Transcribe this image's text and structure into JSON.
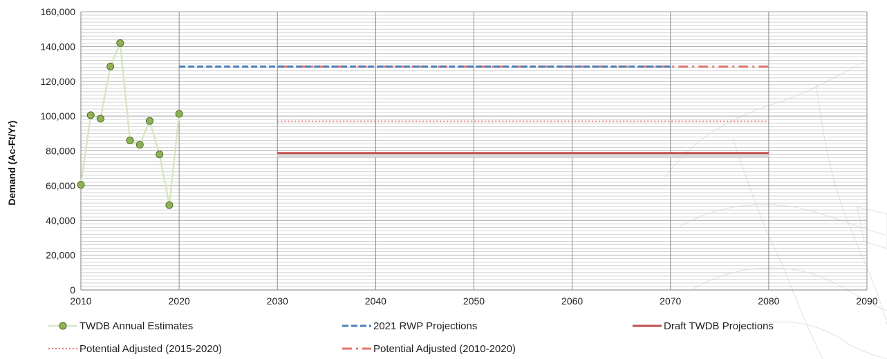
{
  "chart_data": {
    "type": "line",
    "title": "",
    "xlabel": "",
    "ylabel": "Demand (Ac-Ft/Yr)",
    "xlim": [
      2010,
      2090
    ],
    "ylim": [
      0,
      160000
    ],
    "x_ticks": [
      2010,
      2020,
      2030,
      2040,
      2050,
      2060,
      2070,
      2080,
      2090
    ],
    "x_tick_labels": [
      "2010",
      "2020",
      "2030",
      "2040",
      "2050",
      "2060",
      "2070",
      "2080",
      "2090"
    ],
    "y_ticks": [
      0,
      20000,
      40000,
      60000,
      80000,
      100000,
      120000,
      140000,
      160000
    ],
    "y_tick_labels": [
      "0",
      "20,000",
      "40,000",
      "60,000",
      "80,000",
      "100,000",
      "120,000",
      "140,000",
      "160,000"
    ],
    "grid": true,
    "legend_position": "bottom",
    "series": [
      {
        "name": "TWDB Annual Estimates",
        "style": "markers-line",
        "color": "#8db356",
        "line_color": "#d8e6c3",
        "x": [
          2010,
          2011,
          2012,
          2013,
          2014,
          2015,
          2016,
          2017,
          2018,
          2019,
          2020
        ],
        "y": [
          60500,
          100500,
          98500,
          128500,
          142000,
          86000,
          83500,
          97200,
          78000,
          48800,
          101300
        ]
      },
      {
        "name": "2021 RWP Projections",
        "style": "dashed",
        "color": "#4a7ebb",
        "x": [
          2020,
          2030,
          2040,
          2050,
          2060,
          2070
        ],
        "y": [
          128500,
          128500,
          128500,
          128500,
          128500,
          128500
        ]
      },
      {
        "name": "Draft TWDB Projections",
        "style": "solid",
        "color": "#c0504d",
        "x": [
          2030,
          2040,
          2050,
          2060,
          2070,
          2080
        ],
        "y": [
          78700,
          78700,
          78700,
          78700,
          78700,
          78700
        ]
      },
      {
        "name": "Potential Adjusted (2015-2020)",
        "style": "dotted",
        "color": "#e8767c",
        "x": [
          2030,
          2040,
          2050,
          2060,
          2070,
          2080
        ],
        "y": [
          97000,
          97000,
          97000,
          97000,
          97000,
          97000
        ]
      },
      {
        "name": "Potential Adjusted (2010-2020)",
        "style": "dash-dot",
        "color": "#e0766e",
        "x": [
          2030,
          2040,
          2050,
          2060,
          2070,
          2080
        ],
        "y": [
          128500,
          128500,
          128500,
          128500,
          128500,
          128500
        ]
      }
    ]
  }
}
